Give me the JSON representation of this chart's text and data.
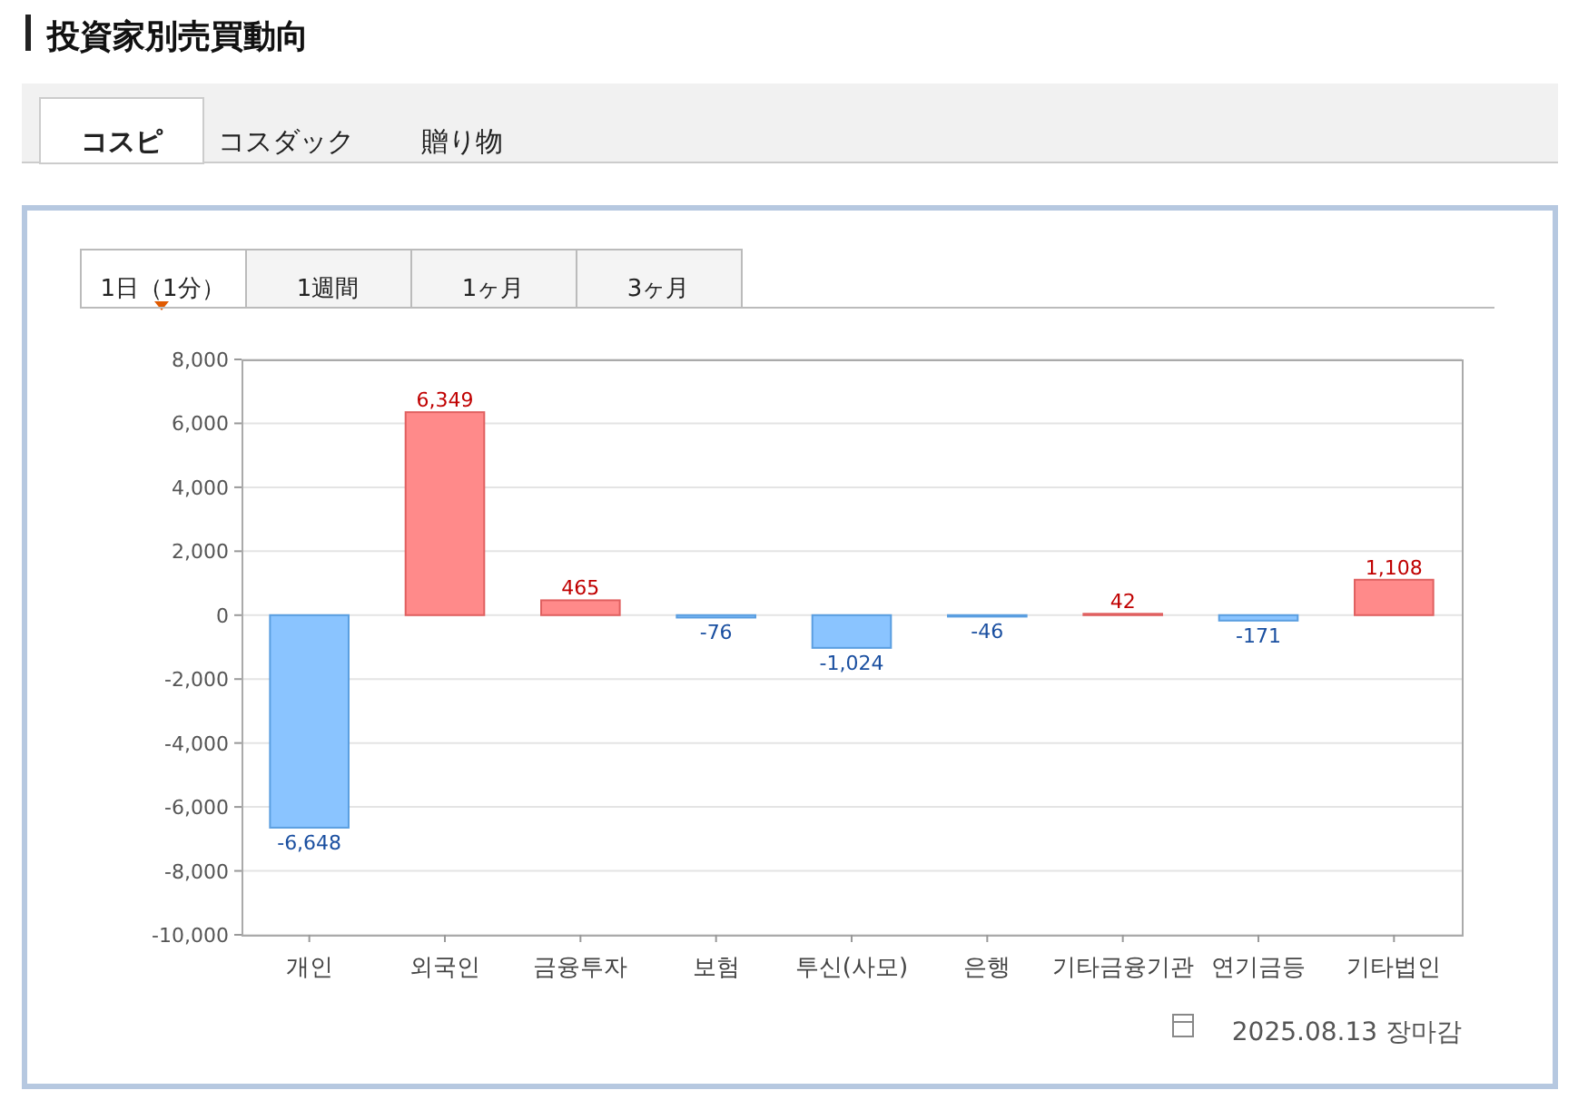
{
  "chart_data": {
    "type": "bar",
    "title": "投資家別売買動向",
    "categories": [
      "개인",
      "외국인",
      "금융투자",
      "보험",
      "투신(사모)",
      "은행",
      "기타금융기관",
      "연기금등",
      "기타법인"
    ],
    "values": [
      -6648,
      6349,
      465,
      -76,
      -1024,
      -46,
      42,
      -171,
      1108
    ],
    "colors": [
      "#8ac4ff",
      "#ff8a8a",
      "#ff8a8a",
      "#8ac4ff",
      "#8ac4ff",
      "#8ac4ff",
      "#ff8a8a",
      "#8ac4ff",
      "#ff8a8a"
    ],
    "ylim": [
      -10000,
      8000
    ],
    "yticks": [
      {
        "value": -10000,
        "label": "-10,000"
      },
      {
        "value": -8000,
        "label": "-8,000"
      },
      {
        "value": -6000,
        "label": "-6,000"
      },
      {
        "value": -4000,
        "label": "-4,000"
      },
      {
        "value": -2000,
        "label": "-2,000"
      },
      0,
      {
        "value": 2000,
        "label": "2,000"
      },
      {
        "value": 4000,
        "label": "4,000"
      },
      {
        "value": 6000,
        "label": "6,000"
      },
      {
        "value": 8000,
        "label": "8,000"
      }
    ],
    "grid": "y",
    "value_labels": [
      "-6,648",
      "6,349",
      "465",
      "-76",
      "-1,024",
      "-46",
      "42",
      "-171",
      "1,108"
    ],
    "annotations": [
      "コスピ",
      "コスダック",
      "贈り物",
      "1日（1分）",
      "1週間",
      "1ヶ月",
      "3ヶ月",
      "2025.08.13 장마감"
    ]
  }
}
